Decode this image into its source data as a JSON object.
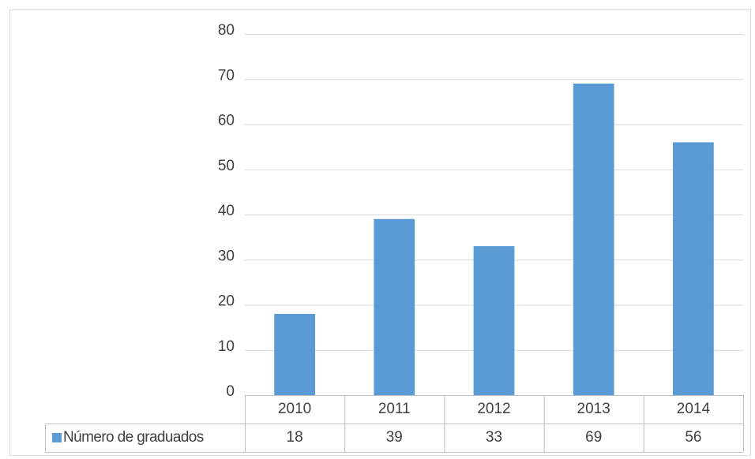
{
  "chart_data": {
    "type": "bar",
    "categories": [
      "2010",
      "2011",
      "2012",
      "2013",
      "2014"
    ],
    "series": [
      {
        "name": "Número de graduados",
        "color": "#5b9bd5",
        "values": [
          18,
          39,
          33,
          69,
          56
        ]
      }
    ],
    "ylim": [
      0,
      80
    ],
    "yticks": [
      0,
      10,
      20,
      30,
      40,
      50,
      60,
      70,
      80
    ],
    "grid": true,
    "data_table": true
  }
}
